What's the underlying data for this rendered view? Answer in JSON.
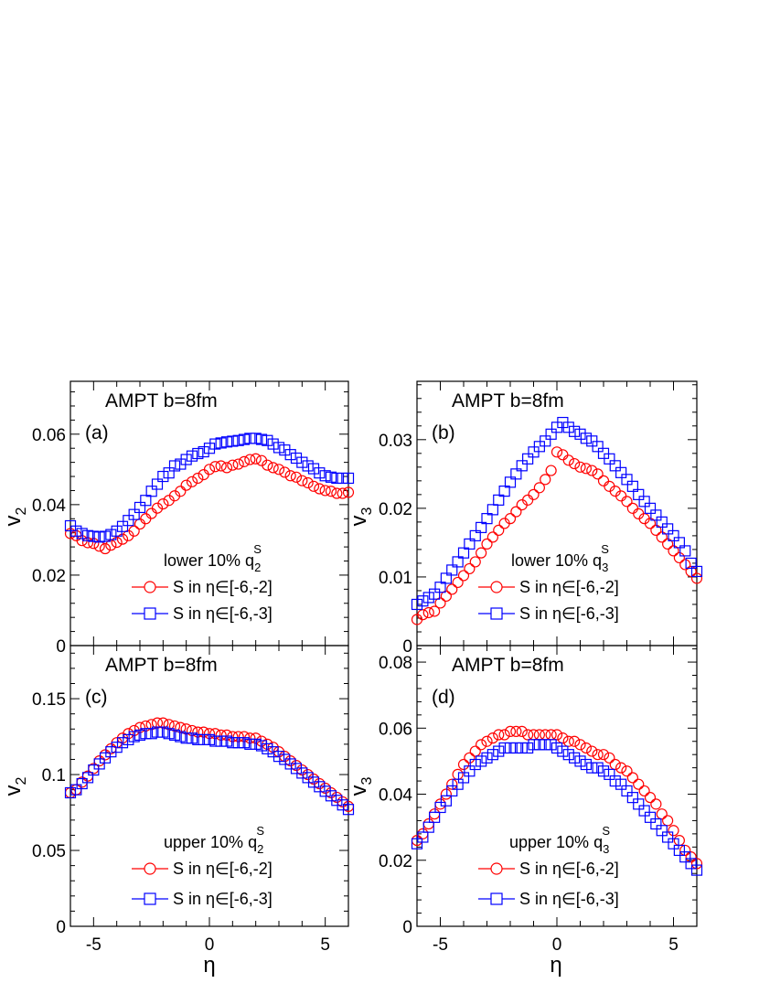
{
  "figure": {
    "x_label": "η",
    "marker_colors": {
      "circle": "#ff0000",
      "square": "#0000ff"
    }
  },
  "chart_data": [
    {
      "id": "a",
      "type": "scatter",
      "panel_label": "(a)",
      "title": "AMPT b=8fm",
      "ylabel": "v",
      "ylabel_sub": "2",
      "xlim": [
        -6,
        6
      ],
      "ylim": [
        0,
        0.075
      ],
      "yticks": [
        0,
        0.02,
        0.04,
        0.06
      ],
      "ytick_labels": [
        "0",
        "0.02",
        "0.04",
        "0.06"
      ],
      "xticks": [
        -5,
        0,
        5
      ],
      "xtick_labels": [],
      "legend_header": {
        "prefix": "lower 10% q",
        "sub": "2",
        "sup": "S"
      },
      "series": [
        {
          "name": "S in η∈[-6,-2]",
          "marker": "circle",
          "color": "#ff0000",
          "x": [
            -6,
            -5.75,
            -5.5,
            -5.25,
            -5,
            -4.75,
            -4.5,
            -4.25,
            -4,
            -3.75,
            -3.5,
            -3.25,
            -3,
            -2.75,
            -2.5,
            -2.25,
            -2,
            -1.75,
            -1.5,
            -1.25,
            -1,
            -0.75,
            -0.5,
            -0.25,
            0,
            0.25,
            0.5,
            0.75,
            1,
            1.25,
            1.5,
            1.75,
            2,
            2.25,
            2.5,
            2.75,
            3,
            3.25,
            3.5,
            3.75,
            4,
            4.25,
            4.5,
            4.75,
            5,
            5.25,
            5.5,
            5.75,
            6
          ],
          "y": [
            0.0318,
            0.0312,
            0.0298,
            0.0292,
            0.029,
            0.0282,
            0.0275,
            0.0285,
            0.0293,
            0.0302,
            0.0312,
            0.0325,
            0.0345,
            0.036,
            0.0375,
            0.039,
            0.0402,
            0.0412,
            0.0425,
            0.0438,
            0.0455,
            0.0465,
            0.0475,
            0.0485,
            0.05,
            0.0508,
            0.051,
            0.0505,
            0.0512,
            0.0515,
            0.0522,
            0.0528,
            0.053,
            0.0525,
            0.0512,
            0.0505,
            0.05,
            0.0492,
            0.0482,
            0.0478,
            0.0468,
            0.0462,
            0.0452,
            0.0445,
            0.044,
            0.0438,
            0.0432,
            0.0432,
            0.0435
          ]
        },
        {
          "name": "S in η∈[-6,-3]",
          "marker": "square",
          "color": "#0000ff",
          "x": [
            -6,
            -5.75,
            -5.5,
            -5.25,
            -5,
            -4.75,
            -4.5,
            -4.25,
            -4,
            -3.75,
            -3.5,
            -3.25,
            -3,
            -2.75,
            -2.5,
            -2.25,
            -2,
            -1.75,
            -1.5,
            -1.25,
            -1,
            -0.75,
            -0.5,
            -0.25,
            0,
            0.25,
            0.5,
            0.75,
            1,
            1.25,
            1.5,
            1.75,
            2,
            2.25,
            2.5,
            2.75,
            3,
            3.25,
            3.5,
            3.75,
            4,
            4.25,
            4.5,
            4.75,
            5,
            5.25,
            5.5,
            5.75,
            6
          ],
          "y": [
            0.034,
            0.0325,
            0.0318,
            0.0312,
            0.031,
            0.0308,
            0.031,
            0.0315,
            0.0325,
            0.0338,
            0.0355,
            0.0372,
            0.0392,
            0.0412,
            0.0438,
            0.0458,
            0.048,
            0.049,
            0.051,
            0.0515,
            0.0528,
            0.0538,
            0.0545,
            0.055,
            0.056,
            0.0572,
            0.0575,
            0.0578,
            0.058,
            0.0582,
            0.0585,
            0.0588,
            0.0588,
            0.0585,
            0.0582,
            0.0572,
            0.0562,
            0.0555,
            0.0542,
            0.0532,
            0.052,
            0.051,
            0.0502,
            0.049,
            0.0482,
            0.0478,
            0.0475,
            0.0475,
            0.0475
          ]
        }
      ]
    },
    {
      "id": "b",
      "type": "scatter",
      "panel_label": "(b)",
      "title": "AMPT b=8fm",
      "ylabel": "v",
      "ylabel_sub": "3",
      "xlim": [
        -6,
        6
      ],
      "ylim": [
        0,
        0.0385
      ],
      "yticks": [
        0,
        0.01,
        0.02,
        0.03
      ],
      "ytick_labels": [
        "0",
        "0.01",
        "0.02",
        "0.03"
      ],
      "xticks": [
        -5,
        0,
        5
      ],
      "xtick_labels": [],
      "legend_header": {
        "prefix": "lower 10% q",
        "sub": "3",
        "sup": "S"
      },
      "series": [
        {
          "name": "S in η∈[-6,-2]",
          "marker": "circle",
          "color": "#ff0000",
          "x": [
            -6,
            -5.75,
            -5.5,
            -5.25,
            -5,
            -4.75,
            -4.5,
            -4.25,
            -4,
            -3.75,
            -3.5,
            -3.25,
            -3,
            -2.75,
            -2.5,
            -2.25,
            -2,
            -1.75,
            -1.5,
            -1.25,
            -1,
            -0.75,
            -0.5,
            -0.25,
            0,
            0.25,
            0.5,
            0.75,
            1,
            1.25,
            1.5,
            1.75,
            2,
            2.25,
            2.5,
            2.75,
            3,
            3.25,
            3.5,
            3.75,
            4,
            4.25,
            4.5,
            4.75,
            5,
            5.25,
            5.5,
            5.75,
            6
          ],
          "y": [
            0.0038,
            0.0045,
            0.0048,
            0.005,
            0.0062,
            0.0072,
            0.0082,
            0.0092,
            0.0102,
            0.0112,
            0.0122,
            0.0135,
            0.0148,
            0.0158,
            0.0168,
            0.0178,
            0.0185,
            0.0195,
            0.0205,
            0.0212,
            0.022,
            0.023,
            0.0242,
            0.0255,
            0.0282,
            0.0278,
            0.027,
            0.0265,
            0.026,
            0.0258,
            0.0255,
            0.025,
            0.024,
            0.0232,
            0.0225,
            0.0218,
            0.021,
            0.02,
            0.0192,
            0.0185,
            0.0178,
            0.0168,
            0.0158,
            0.0148,
            0.0138,
            0.0128,
            0.0118,
            0.0108,
            0.0098
          ]
        },
        {
          "name": "S in η∈[-6,-3]",
          "marker": "square",
          "color": "#0000ff",
          "x": [
            -6,
            -5.75,
            -5.5,
            -5.25,
            -5,
            -4.75,
            -4.5,
            -4.25,
            -4,
            -3.75,
            -3.5,
            -3.25,
            -3,
            -2.75,
            -2.5,
            -2.25,
            -2,
            -1.75,
            -1.5,
            -1.25,
            -1,
            -0.75,
            -0.5,
            -0.25,
            0,
            0.25,
            0.5,
            0.75,
            1,
            1.25,
            1.5,
            1.75,
            2,
            2.25,
            2.5,
            2.75,
            3,
            3.25,
            3.5,
            3.75,
            4,
            4.25,
            4.5,
            4.75,
            5,
            5.25,
            5.5,
            5.75,
            6
          ],
          "y": [
            0.006,
            0.0065,
            0.007,
            0.0075,
            0.0085,
            0.0098,
            0.011,
            0.0122,
            0.0135,
            0.0148,
            0.016,
            0.0172,
            0.0185,
            0.0198,
            0.0212,
            0.0225,
            0.0238,
            0.025,
            0.0262,
            0.0272,
            0.0282,
            0.029,
            0.0298,
            0.0308,
            0.0318,
            0.0325,
            0.0318,
            0.0312,
            0.0308,
            0.0302,
            0.0298,
            0.029,
            0.028,
            0.0272,
            0.0262,
            0.0252,
            0.0242,
            0.0232,
            0.022,
            0.021,
            0.02,
            0.019,
            0.018,
            0.017,
            0.016,
            0.015,
            0.0138,
            0.012,
            0.0108
          ]
        }
      ]
    },
    {
      "id": "c",
      "type": "scatter",
      "panel_label": "(c)",
      "title": "AMPT b=8fm",
      "ylabel": "v",
      "ylabel_sub": "2",
      "xlim": [
        -6,
        6
      ],
      "ylim": [
        0,
        0.185
      ],
      "yticks": [
        0,
        0.05,
        0.1,
        0.15
      ],
      "ytick_labels": [
        "0",
        "0.05",
        "0.1",
        "0.15"
      ],
      "xticks": [
        -5,
        0,
        5
      ],
      "xtick_labels": [
        "-5",
        "0",
        "5"
      ],
      "legend_header": {
        "prefix": "upper 10% q",
        "sub": "2",
        "sup": "S"
      },
      "series": [
        {
          "name": "S in η∈[-6,-2]",
          "marker": "circle",
          "color": "#ff0000",
          "x": [
            -6,
            -5.75,
            -5.5,
            -5.25,
            -5,
            -4.75,
            -4.5,
            -4.25,
            -4,
            -3.75,
            -3.5,
            -3.25,
            -3,
            -2.75,
            -2.5,
            -2.25,
            -2,
            -1.75,
            -1.5,
            -1.25,
            -1,
            -0.75,
            -0.5,
            -0.25,
            0,
            0.25,
            0.5,
            0.75,
            1,
            1.25,
            1.5,
            1.75,
            2,
            2.25,
            2.5,
            2.75,
            3,
            3.25,
            3.5,
            3.75,
            4,
            4.25,
            4.5,
            4.75,
            5,
            5.25,
            5.5,
            5.75,
            6
          ],
          "y": [
            0.088,
            0.09,
            0.095,
            0.099,
            0.104,
            0.109,
            0.113,
            0.117,
            0.121,
            0.124,
            0.127,
            0.129,
            0.131,
            0.132,
            0.133,
            0.134,
            0.134,
            0.133,
            0.132,
            0.131,
            0.13,
            0.129,
            0.128,
            0.128,
            0.127,
            0.127,
            0.126,
            0.126,
            0.125,
            0.125,
            0.125,
            0.124,
            0.124,
            0.122,
            0.12,
            0.118,
            0.115,
            0.112,
            0.109,
            0.106,
            0.103,
            0.1,
            0.097,
            0.094,
            0.091,
            0.088,
            0.085,
            0.082,
            0.079
          ]
        },
        {
          "name": "S in η∈[-6,-3]",
          "marker": "square",
          "color": "#0000ff",
          "x": [
            -6,
            -5.75,
            -5.5,
            -5.25,
            -5,
            -4.75,
            -4.5,
            -4.25,
            -4,
            -3.75,
            -3.5,
            -3.25,
            -3,
            -2.75,
            -2.5,
            -2.25,
            -2,
            -1.75,
            -1.5,
            -1.25,
            -1,
            -0.75,
            -0.5,
            -0.25,
            0,
            0.25,
            0.5,
            0.75,
            1,
            1.25,
            1.5,
            1.75,
            2,
            2.25,
            2.5,
            2.75,
            3,
            3.25,
            3.5,
            3.75,
            4,
            4.25,
            4.5,
            4.75,
            5,
            5.25,
            5.5,
            5.75,
            6
          ],
          "y": [
            0.088,
            0.09,
            0.094,
            0.098,
            0.103,
            0.107,
            0.111,
            0.115,
            0.118,
            0.121,
            0.123,
            0.125,
            0.126,
            0.127,
            0.127,
            0.128,
            0.128,
            0.127,
            0.126,
            0.125,
            0.124,
            0.124,
            0.123,
            0.123,
            0.123,
            0.122,
            0.122,
            0.122,
            0.121,
            0.121,
            0.121,
            0.12,
            0.12,
            0.119,
            0.117,
            0.115,
            0.112,
            0.11,
            0.107,
            0.104,
            0.101,
            0.098,
            0.095,
            0.092,
            0.089,
            0.086,
            0.083,
            0.08,
            0.077
          ]
        }
      ]
    },
    {
      "id": "d",
      "type": "scatter",
      "panel_label": "(d)",
      "title": "AMPT b=8fm",
      "ylabel": "v",
      "ylabel_sub": "3",
      "xlim": [
        -6,
        6
      ],
      "ylim": [
        0,
        0.085
      ],
      "yticks": [
        0,
        0.02,
        0.04,
        0.06,
        0.08
      ],
      "ytick_labels": [
        "0",
        "0.02",
        "0.04",
        "0.06",
        "0.08"
      ],
      "xticks": [
        -5,
        0,
        5
      ],
      "xtick_labels": [
        "-5",
        "0",
        "5"
      ],
      "legend_header": {
        "prefix": "upper 10% q",
        "sub": "3",
        "sup": "S"
      },
      "series": [
        {
          "name": "S in η∈[-6,-2]",
          "marker": "circle",
          "color": "#ff0000",
          "x": [
            -6,
            -5.75,
            -5.5,
            -5.25,
            -5,
            -4.75,
            -4.5,
            -4.25,
            -4,
            -3.75,
            -3.5,
            -3.25,
            -3,
            -2.75,
            -2.5,
            -2.25,
            -2,
            -1.75,
            -1.5,
            -1.25,
            -1,
            -0.75,
            -0.5,
            -0.25,
            0,
            0.25,
            0.5,
            0.75,
            1,
            1.25,
            1.5,
            1.75,
            2,
            2.25,
            2.5,
            2.75,
            3,
            3.25,
            3.5,
            3.75,
            4,
            4.25,
            4.5,
            4.75,
            5,
            5.25,
            5.5,
            5.75,
            6
          ],
          "y": [
            0.026,
            0.028,
            0.031,
            0.034,
            0.037,
            0.04,
            0.043,
            0.046,
            0.049,
            0.051,
            0.053,
            0.055,
            0.056,
            0.057,
            0.058,
            0.058,
            0.059,
            0.059,
            0.059,
            0.058,
            0.058,
            0.058,
            0.058,
            0.058,
            0.058,
            0.057,
            0.056,
            0.056,
            0.055,
            0.054,
            0.053,
            0.052,
            0.052,
            0.051,
            0.049,
            0.048,
            0.047,
            0.045,
            0.043,
            0.041,
            0.039,
            0.037,
            0.034,
            0.032,
            0.029,
            0.026,
            0.023,
            0.021,
            0.019
          ]
        },
        {
          "name": "S in η∈[-6,-3]",
          "marker": "square",
          "color": "#0000ff",
          "x": [
            -6,
            -5.75,
            -5.5,
            -5.25,
            -5,
            -4.75,
            -4.5,
            -4.25,
            -4,
            -3.75,
            -3.5,
            -3.25,
            -3,
            -2.75,
            -2.5,
            -2.25,
            -2,
            -1.75,
            -1.5,
            -1.25,
            -1,
            -0.75,
            -0.5,
            -0.25,
            0,
            0.25,
            0.5,
            0.75,
            1,
            1.25,
            1.5,
            1.75,
            2,
            2.25,
            2.5,
            2.75,
            3,
            3.25,
            3.5,
            3.75,
            4,
            4.25,
            4.5,
            4.75,
            5,
            5.25,
            5.5,
            5.75,
            6
          ],
          "y": [
            0.025,
            0.027,
            0.03,
            0.033,
            0.036,
            0.038,
            0.041,
            0.043,
            0.045,
            0.047,
            0.049,
            0.05,
            0.051,
            0.052,
            0.053,
            0.054,
            0.054,
            0.054,
            0.054,
            0.054,
            0.055,
            0.055,
            0.055,
            0.055,
            0.054,
            0.053,
            0.052,
            0.051,
            0.05,
            0.049,
            0.048,
            0.048,
            0.047,
            0.046,
            0.044,
            0.043,
            0.041,
            0.039,
            0.037,
            0.035,
            0.033,
            0.031,
            0.029,
            0.027,
            0.025,
            0.023,
            0.021,
            0.019,
            0.017
          ]
        }
      ]
    }
  ]
}
